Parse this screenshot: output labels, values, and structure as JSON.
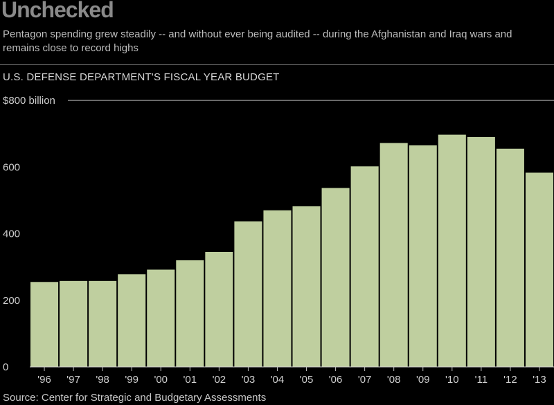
{
  "header": {
    "title": "Unchecked",
    "subtitle": "Pentagon spending grew steadily -- and without ever being audited -- during the Afghanistan and Iraq wars and remains close to record highs",
    "chart_label": "U.S. DEFENSE DEPARTMENT'S FISCAL YEAR BUDGET"
  },
  "footer": {
    "source": "Source: Center for Strategic and Budgetary Assessments"
  },
  "colors": {
    "bar": "#bfcf9f",
    "bar_border": "#1a1a1a",
    "gridline": "#d0d0d0",
    "background": "#000000"
  },
  "chart_data": {
    "type": "bar",
    "title": "U.S. DEFENSE DEPARTMENT'S FISCAL YEAR BUDGET",
    "categories": [
      "'96",
      "'97",
      "'98",
      "'99",
      "'00",
      "'01",
      "'02",
      "'03",
      "'04",
      "'05",
      "'06",
      "'07",
      "'08",
      "'09",
      "'10",
      "'11",
      "'12",
      "'13"
    ],
    "values": [
      255,
      258,
      258,
      278,
      292,
      320,
      345,
      437,
      470,
      482,
      537,
      602,
      672,
      665,
      697,
      690,
      655,
      583
    ],
    "yticks": [
      0,
      200,
      400,
      600,
      800
    ],
    "ytick_labels": [
      "0",
      "200",
      "400",
      "600",
      "$800 billion"
    ],
    "ylim": [
      0,
      800
    ],
    "xlabel": "",
    "ylabel": "",
    "grid": "top line only"
  }
}
